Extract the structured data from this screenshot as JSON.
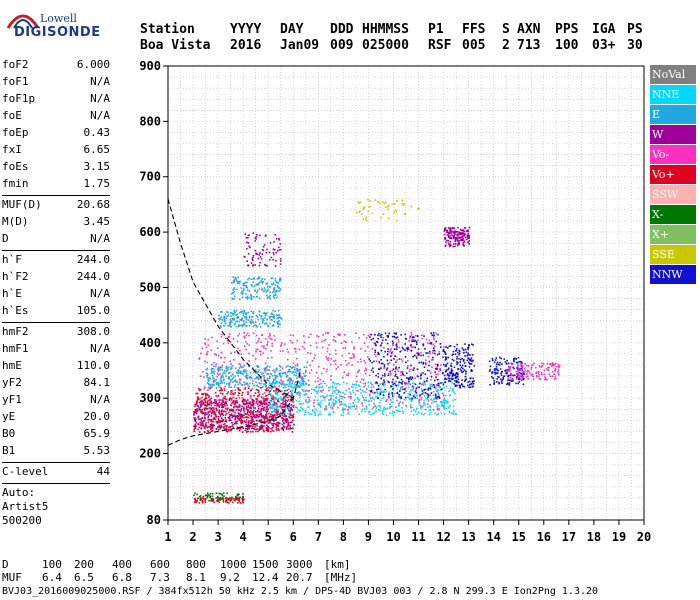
{
  "logo": {
    "line1": "Lowell",
    "line2": "DIGISONDE"
  },
  "header": {
    "labels": [
      "Station",
      "YYYY",
      "DAY",
      "DDD",
      "HHMMSS",
      "P1",
      "FFS",
      "S",
      "AXN",
      "PPS",
      "IGA",
      "PS"
    ],
    "values": [
      "Boa Vista",
      "2016",
      "Jan09",
      "009",
      "025000",
      "RSF",
      "005",
      "2",
      "713",
      "100",
      "03+",
      "30"
    ]
  },
  "params": [
    [
      {
        "k": "foF2",
        "v": "6.000"
      },
      {
        "k": "foF1",
        "v": "N/A"
      },
      {
        "k": "foF1p",
        "v": "N/A"
      },
      {
        "k": "foE",
        "v": "N/A"
      },
      {
        "k": "foEp",
        "v": "0.43"
      },
      {
        "k": "fxI",
        "v": "6.65"
      },
      {
        "k": "foEs",
        "v": "3.15"
      },
      {
        "k": "fmin",
        "v": "1.75"
      }
    ],
    [
      {
        "k": "MUF(D)",
        "v": "20.68"
      },
      {
        "k": "M(D)",
        "v": "3.45"
      },
      {
        "k": "D",
        "v": "N/A"
      }
    ],
    [
      {
        "k": "h`F",
        "v": "244.0"
      },
      {
        "k": "h`F2",
        "v": "244.0"
      },
      {
        "k": "h`E",
        "v": "N/A"
      },
      {
        "k": "h`Es",
        "v": "105.0"
      }
    ],
    [
      {
        "k": "hmF2",
        "v": "308.0"
      },
      {
        "k": "hmF1",
        "v": "N/A"
      },
      {
        "k": "hmE",
        "v": "110.0"
      },
      {
        "k": "yF2",
        "v": "84.1"
      },
      {
        "k": "yF1",
        "v": "N/A"
      },
      {
        "k": "yE",
        "v": "20.0"
      },
      {
        "k": "B0",
        "v": "65.9"
      },
      {
        "k": "B1",
        "v": "5.53"
      }
    ],
    [
      {
        "k": "C-level",
        "v": "44"
      }
    ]
  ],
  "auto": {
    "line1": "Auto:",
    "line2": "Artist5",
    "line3": "500200"
  },
  "legend": [
    {
      "label": "NoVal",
      "color": "#808080"
    },
    {
      "label": "NNE",
      "color": "#00d8ff"
    },
    {
      "label": "E",
      "color": "#20a8e0"
    },
    {
      "label": "W",
      "color": "#a0009a"
    },
    {
      "label": "Vo-",
      "color": "#ff30c0"
    },
    {
      "label": "Vo+",
      "color": "#e00020"
    },
    {
      "label": "SSW",
      "color": "#ffb0b0"
    },
    {
      "label": "X-",
      "color": "#007800"
    },
    {
      "label": "X+",
      "color": "#80c060"
    },
    {
      "label": "SSE",
      "color": "#c8c800"
    },
    {
      "label": "NNW",
      "color": "#1010d0"
    }
  ],
  "dtable": {
    "d_label": "D",
    "d_values": [
      "100",
      "200",
      "400",
      "600",
      "800",
      "1000",
      "1500",
      "3000"
    ],
    "d_unit": "[km]",
    "muf_label": "MUF",
    "muf_values": [
      "6.4",
      "6.5",
      "6.8",
      "7.3",
      "8.1",
      "9.2",
      "12.4",
      "20.7"
    ],
    "muf_unit": "[MHz]"
  },
  "footer": "BVJ03_2016009025000.RSF / 384fx512h 50 kHz 2.5 km / DPS-4D BVJ03 003 / 2.8 N 299.3 E Ion2Png 1.3.20",
  "chart_data": {
    "type": "scatter",
    "xlabel": "",
    "ylabel": "",
    "xlim": [
      1,
      20
    ],
    "ylim": [
      80,
      900
    ],
    "x_ticks": [
      1,
      2,
      3,
      4,
      5,
      6,
      7,
      8,
      9,
      10,
      11,
      12,
      13,
      14,
      15,
      16,
      17,
      18,
      19,
      20
    ],
    "y_ticks": [
      80,
      200,
      300,
      400,
      500,
      600,
      700,
      800,
      900
    ],
    "grid": true,
    "legend_position": "right",
    "trace_clusters": [
      {
        "series": "W",
        "x_range": [
          2.0,
          6.0
        ],
        "h_range": [
          245,
          300
        ],
        "density": 600
      },
      {
        "series": "Vo+",
        "x_range": [
          2.0,
          6.0
        ],
        "h_range": [
          240,
          320
        ],
        "density": 500
      },
      {
        "series": "Vo-",
        "x_range": [
          2.2,
          12.0
        ],
        "h_range": [
          280,
          420
        ],
        "density": 650
      },
      {
        "series": "E",
        "x_range": [
          2.5,
          6.5
        ],
        "h_range": [
          320,
          360
        ],
        "density": 350
      },
      {
        "series": "E",
        "x_range": [
          3.0,
          5.5
        ],
        "h_range": [
          430,
          460
        ],
        "density": 200
      },
      {
        "series": "E",
        "x_range": [
          3.5,
          5.5
        ],
        "h_range": [
          480,
          520
        ],
        "density": 160
      },
      {
        "series": "NNE",
        "x_range": [
          5.0,
          12.5
        ],
        "h_range": [
          270,
          330
        ],
        "density": 550
      },
      {
        "series": "NNW",
        "x_range": [
          9.0,
          12.0
        ],
        "h_range": [
          300,
          420
        ],
        "density": 300
      },
      {
        "series": "NNW",
        "x_range": [
          12.0,
          13.2
        ],
        "h_range": [
          320,
          400
        ],
        "density": 200
      },
      {
        "series": "NNW",
        "x_range": [
          13.8,
          15.2
        ],
        "h_range": [
          325,
          375
        ],
        "density": 150
      },
      {
        "series": "W",
        "x_range": [
          12.0,
          13.0
        ],
        "h_range": [
          575,
          610
        ],
        "density": 160
      },
      {
        "series": "Vo-",
        "x_range": [
          14.5,
          16.6
        ],
        "h_range": [
          335,
          365
        ],
        "density": 130
      },
      {
        "series": "SSE",
        "x_range": [
          8.5,
          11.0
        ],
        "h_range": [
          620,
          660
        ],
        "density": 50
      },
      {
        "series": "X-",
        "x_range": [
          2.0,
          4.0
        ],
        "h_range": [
          115,
          130
        ],
        "density": 70
      },
      {
        "series": "Vo+",
        "x_range": [
          2.0,
          4.0
        ],
        "h_range": [
          112,
          122
        ],
        "density": 70
      },
      {
        "series": "W",
        "x_range": [
          4.0,
          5.5
        ],
        "h_range": [
          540,
          600
        ],
        "density": 80
      }
    ],
    "model_curves": [
      {
        "name": "profile-left",
        "points": [
          [
            1,
            660
          ],
          [
            1.5,
            580
          ],
          [
            2,
            510
          ],
          [
            3,
            430
          ],
          [
            4,
            370
          ],
          [
            5,
            325
          ],
          [
            6,
            300
          ]
        ]
      },
      {
        "name": "profile-right",
        "points": [
          [
            1,
            215
          ],
          [
            1.5,
            225
          ],
          [
            2,
            232
          ],
          [
            3,
            240
          ],
          [
            4,
            248
          ],
          [
            5,
            258
          ],
          [
            5.5,
            268
          ],
          [
            6,
            300
          ],
          [
            6.3,
            350
          ]
        ]
      }
    ]
  }
}
